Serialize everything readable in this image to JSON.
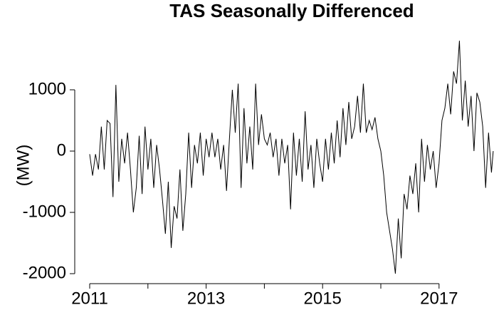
{
  "chart_data": {
    "type": "line",
    "title": "TAS Seasonally Differenced",
    "ylabel": "(MW)",
    "x": [
      2011.0,
      2011.05,
      2011.1,
      2011.15,
      2011.2,
      2011.25,
      2011.3,
      2011.35,
      2011.4,
      2011.45,
      2011.5,
      2011.55,
      2011.6,
      2011.65,
      2011.7,
      2011.75,
      2011.8,
      2011.85,
      2011.9,
      2011.95,
      2012.0,
      2012.05,
      2012.1,
      2012.15,
      2012.2,
      2012.25,
      2012.3,
      2012.35,
      2012.4,
      2012.45,
      2012.5,
      2012.55,
      2012.6,
      2012.65,
      2012.7,
      2012.75,
      2012.8,
      2012.85,
      2012.9,
      2012.95,
      2013.0,
      2013.05,
      2013.1,
      2013.15,
      2013.2,
      2013.25,
      2013.3,
      2013.35,
      2013.4,
      2013.45,
      2013.5,
      2013.55,
      2013.6,
      2013.65,
      2013.7,
      2013.75,
      2013.8,
      2013.85,
      2013.9,
      2013.95,
      2014.0,
      2014.05,
      2014.1,
      2014.15,
      2014.2,
      2014.25,
      2014.3,
      2014.35,
      2014.4,
      2014.45,
      2014.5,
      2014.55,
      2014.6,
      2014.65,
      2014.7,
      2014.75,
      2014.8,
      2014.85,
      2014.9,
      2014.95,
      2015.0,
      2015.05,
      2015.1,
      2015.15,
      2015.2,
      2015.25,
      2015.3,
      2015.35,
      2015.4,
      2015.45,
      2015.5,
      2015.55,
      2015.6,
      2015.65,
      2015.7,
      2015.75,
      2015.8,
      2015.85,
      2015.9,
      2015.95,
      2016.0,
      2016.05,
      2016.1,
      2016.15,
      2016.2,
      2016.25,
      2016.3,
      2016.35,
      2016.4,
      2016.45,
      2016.5,
      2016.55,
      2016.6,
      2016.65,
      2016.7,
      2016.75,
      2016.8,
      2016.85,
      2016.9,
      2016.95,
      2017.0,
      2017.05,
      2017.1,
      2017.15,
      2017.2,
      2017.25,
      2017.3,
      2017.35,
      2017.4,
      2017.45,
      2017.5,
      2017.55,
      2017.6,
      2017.65,
      2017.7,
      2017.75,
      2017.8,
      2017.85,
      2017.9,
      2017.93
    ],
    "series": [
      {
        "name": "TAS",
        "color": "#000000",
        "values": [
          -50,
          -400,
          -50,
          -300,
          400,
          -300,
          500,
          450,
          -750,
          1080,
          -500,
          200,
          -200,
          300,
          -300,
          -1000,
          -600,
          250,
          -700,
          400,
          -300,
          200,
          -600,
          100,
          -300,
          -800,
          -1350,
          -500,
          -1580,
          -900,
          -1100,
          -300,
          -1300,
          -700,
          300,
          -600,
          100,
          -200,
          300,
          -400,
          200,
          -100,
          300,
          -100,
          200,
          -300,
          100,
          -650,
          200,
          1000,
          300,
          1100,
          -600,
          700,
          -200,
          400,
          -300,
          1100,
          100,
          600,
          200,
          100,
          300,
          -100,
          200,
          -400,
          200,
          -200,
          100,
          -950,
          300,
          -400,
          200,
          -500,
          650,
          -300,
          100,
          -600,
          200,
          -200,
          -500,
          200,
          -300,
          300,
          -200,
          500,
          -100,
          700,
          100,
          800,
          200,
          400,
          900,
          300,
          1100,
          300,
          500,
          350,
          550,
          200,
          0,
          -400,
          -1000,
          -1300,
          -1600,
          -2000,
          -1100,
          -1750,
          -700,
          -950,
          -400,
          -700,
          -200,
          -1000,
          200,
          -500,
          100,
          -300,
          0,
          -600,
          -200,
          500,
          700,
          1100,
          600,
          1300,
          1100,
          1800,
          500,
          1150,
          400,
          900,
          0,
          950,
          800,
          400,
          -600,
          300,
          -350,
          0
        ]
      }
    ],
    "xlim": [
      2011,
      2018
    ],
    "xticks": [
      2011,
      2013,
      2015,
      2017
    ],
    "xminor_ticks": [
      2012,
      2014,
      2016
    ],
    "ylim": [
      -2000,
      1000
    ],
    "yticks": [
      -2000,
      -1000,
      0,
      1000
    ]
  }
}
